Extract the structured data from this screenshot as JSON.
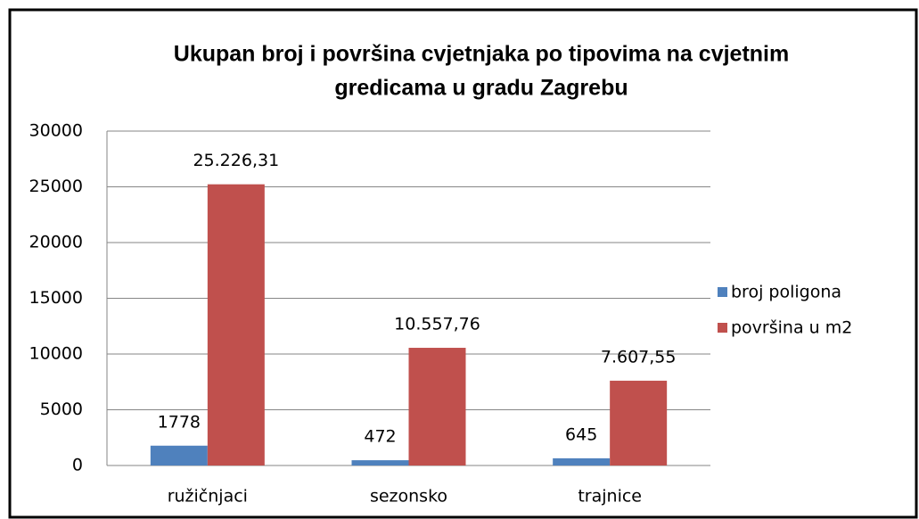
{
  "chart_data": {
    "type": "bar",
    "title": [
      "Ukupan broj i površina cvjetnjaka po tipovima na cvjetnim",
      "gredicama u gradu Zagrebu"
    ],
    "categories": [
      "ružičnjaci",
      "sezonsko",
      "trajnice"
    ],
    "series": [
      {
        "name": "broj poligona",
        "color": "#4f81bd",
        "values": [
          1778,
          472,
          645
        ]
      },
      {
        "name": "površina u m2",
        "color": "#c0504d",
        "values": [
          25226.31,
          10557.76,
          7607.55
        ],
        "value_labels": [
          "25.226,31",
          "10.557,76",
          "7.607,55"
        ]
      }
    ],
    "ylim": [
      0,
      30000
    ],
    "yticks": [
      0,
      5000,
      10000,
      15000,
      20000,
      25000,
      30000
    ],
    "grid": true,
    "legend": "right"
  }
}
